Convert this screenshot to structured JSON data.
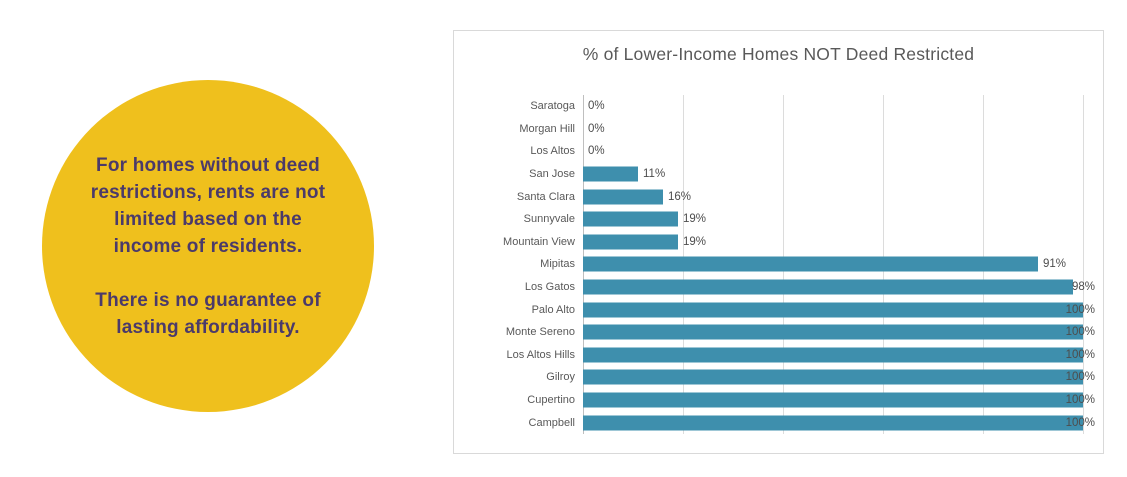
{
  "callout": {
    "paragraph1": "For homes without deed\nrestrictions, rents are not\nlimited based on the\nincome of residents.",
    "paragraph2": "There is no guarantee of\nlasting affordability.",
    "bg_color": "#EFC01D",
    "text_color": "#4B3A6A"
  },
  "chart_data": {
    "type": "bar",
    "orientation": "horizontal",
    "title": "% of Lower-Income Homes NOT Deed Restricted",
    "categories": [
      "Saratoga",
      "Morgan Hill",
      "Los Altos",
      "San Jose",
      "Santa Clara",
      "Sunnyvale",
      "Mountain View",
      "Mipitas",
      "Los Gatos",
      "Palo Alto",
      "Monte Sereno",
      "Los Altos Hills",
      "Gilroy",
      "Cupertino",
      "Campbell"
    ],
    "values": [
      0,
      0,
      0,
      11,
      16,
      19,
      19,
      91,
      98,
      100,
      100,
      100,
      100,
      100,
      100
    ],
    "value_labels": [
      "0%",
      "0%",
      "0%",
      "11%",
      "16%",
      "19%",
      "19%",
      "91%",
      "98%",
      "100%",
      "100%",
      "100%",
      "100%",
      "100%",
      "100%"
    ],
    "xlabel": "",
    "ylabel": "",
    "xlim": [
      0,
      100
    ],
    "gridlines_percent": [
      0,
      20,
      40,
      60,
      80,
      100
    ],
    "grid": true,
    "legend_position": "none",
    "bar_color": "#3E8FAD",
    "title_color": "#595959",
    "label_color": "#595959"
  }
}
